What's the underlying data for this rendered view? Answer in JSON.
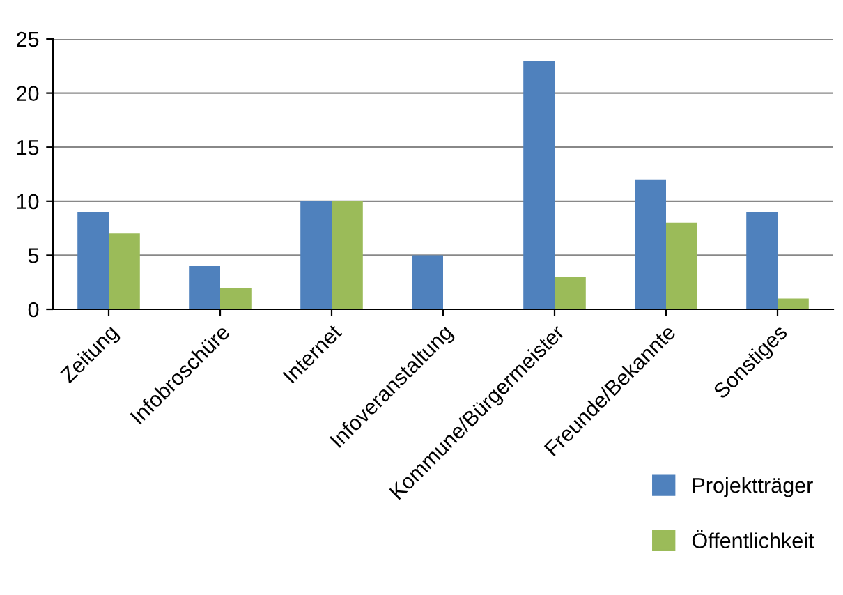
{
  "chart_data": {
    "type": "bar",
    "categories": [
      "Zeitung",
      "Infobroschüre",
      "Internet",
      "Infoveranstaltung",
      "Kommune/Bürgermeister",
      "Freunde/Bekannte",
      "Sonstiges"
    ],
    "series": [
      {
        "name": "Projektträger",
        "color": "#4f81bd",
        "values": [
          9,
          4,
          10,
          5,
          23,
          12,
          9
        ]
      },
      {
        "name": "Öffentlichkeit",
        "color": "#9bbb59",
        "values": [
          7,
          2,
          10,
          null,
          3,
          8,
          1
        ]
      }
    ],
    "ylim": [
      0,
      25
    ],
    "yticks": [
      0,
      5,
      10,
      15,
      20,
      25
    ],
    "grid": "y",
    "legend": "bottom right"
  }
}
